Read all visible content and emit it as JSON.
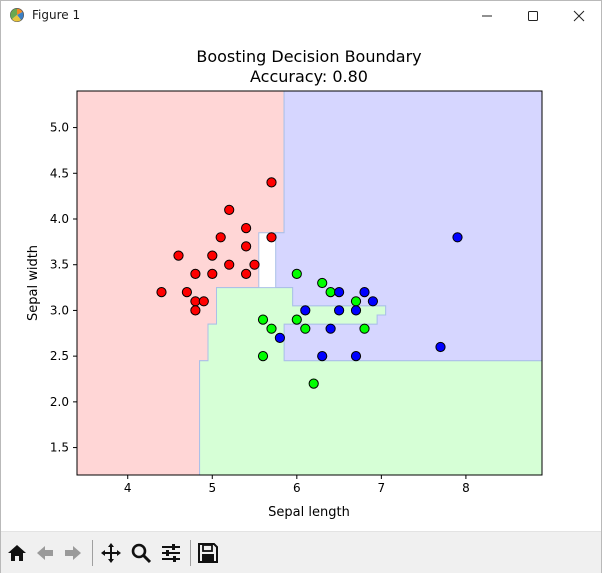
{
  "window": {
    "title": "Figure 1"
  },
  "toolbar": {
    "buttons": [
      "home-icon",
      "back-icon",
      "forward-icon",
      "pan-icon",
      "zoom-icon",
      "configure-icon",
      "save-icon"
    ]
  },
  "colors": {
    "class0_region": "#ffd6d6",
    "class1_region": "#d6ffd6",
    "class2_region": "#d6d6ff",
    "class0_point": "#ff0000",
    "class1_point": "#00ff00",
    "class2_point": "#0000ff",
    "boundary": "#aac0e8"
  },
  "chart_data": {
    "type": "scatter",
    "title": "Boosting Decision Boundary",
    "subtitle": "Accuracy: 0.80",
    "xlabel": "Sepal length",
    "ylabel": "Sepal width",
    "xlim": [
      3.4,
      8.9
    ],
    "ylim": [
      1.2,
      5.4
    ],
    "xticks": [
      4,
      5,
      6,
      7,
      8
    ],
    "yticks": [
      1.5,
      2.0,
      2.5,
      3.0,
      3.5,
      4.0,
      4.5,
      5.0
    ],
    "grid": false,
    "regions": [
      {
        "class": 0,
        "polygon": [
          [
            3.4,
            1.2
          ],
          [
            4.85,
            1.2
          ],
          [
            4.85,
            2.45
          ],
          [
            4.95,
            2.45
          ],
          [
            4.95,
            2.85
          ],
          [
            5.05,
            2.85
          ],
          [
            5.05,
            3.25
          ],
          [
            5.55,
            3.25
          ],
          [
            5.55,
            3.85
          ],
          [
            5.85,
            3.85
          ],
          [
            5.85,
            5.4
          ],
          [
            3.4,
            5.4
          ]
        ]
      },
      {
        "class": 2,
        "polygon": [
          [
            5.85,
            5.4
          ],
          [
            8.9,
            5.4
          ],
          [
            8.9,
            2.45
          ],
          [
            5.85,
            2.45
          ],
          [
            5.85,
            2.85
          ],
          [
            6.95,
            2.85
          ],
          [
            6.95,
            2.95
          ],
          [
            7.05,
            2.95
          ],
          [
            7.05,
            3.05
          ],
          [
            5.95,
            3.05
          ],
          [
            5.95,
            3.25
          ],
          [
            5.75,
            3.25
          ],
          [
            5.75,
            3.85
          ],
          [
            5.85,
            3.85
          ]
        ]
      },
      {
        "class": 1,
        "polygon": [
          [
            4.85,
            1.2
          ],
          [
            8.9,
            1.2
          ],
          [
            8.9,
            2.45
          ],
          [
            5.85,
            2.45
          ],
          [
            5.85,
            2.85
          ],
          [
            6.95,
            2.85
          ],
          [
            6.95,
            2.95
          ],
          [
            7.05,
            2.95
          ],
          [
            7.05,
            3.05
          ],
          [
            5.95,
            3.05
          ],
          [
            5.95,
            3.25
          ],
          [
            5.05,
            3.25
          ],
          [
            5.05,
            2.85
          ],
          [
            4.95,
            2.85
          ],
          [
            4.95,
            2.45
          ],
          [
            4.85,
            2.45
          ]
        ]
      }
    ],
    "series": [
      {
        "class": 0,
        "points": [
          [
            5.7,
            4.4
          ],
          [
            5.2,
            4.1
          ],
          [
            5.4,
            3.9
          ],
          [
            5.7,
            3.8
          ],
          [
            5.1,
            3.8
          ],
          [
            5.4,
            3.7
          ],
          [
            4.6,
            3.6
          ],
          [
            5.0,
            3.6
          ],
          [
            5.2,
            3.5
          ],
          [
            5.5,
            3.5
          ],
          [
            4.8,
            3.4
          ],
          [
            5.0,
            3.4
          ],
          [
            5.4,
            3.4
          ],
          [
            4.4,
            3.2
          ],
          [
            4.7,
            3.2
          ],
          [
            4.8,
            3.1
          ],
          [
            4.9,
            3.1
          ],
          [
            4.8,
            3.0
          ]
        ]
      },
      {
        "class": 1,
        "points": [
          [
            6.0,
            3.4
          ],
          [
            6.3,
            3.3
          ],
          [
            6.4,
            3.2
          ],
          [
            6.7,
            3.1
          ],
          [
            5.6,
            2.9
          ],
          [
            6.0,
            2.9
          ],
          [
            5.7,
            2.8
          ],
          [
            6.1,
            2.8
          ],
          [
            6.8,
            2.8
          ],
          [
            5.6,
            2.5
          ],
          [
            6.2,
            2.2
          ]
        ]
      },
      {
        "class": 2,
        "points": [
          [
            7.9,
            3.8
          ],
          [
            6.5,
            3.2
          ],
          [
            6.8,
            3.2
          ],
          [
            6.9,
            3.1
          ],
          [
            6.1,
            3.0
          ],
          [
            6.5,
            3.0
          ],
          [
            6.7,
            3.0
          ],
          [
            5.8,
            2.7
          ],
          [
            6.4,
            2.8
          ],
          [
            7.7,
            2.6
          ],
          [
            6.3,
            2.5
          ],
          [
            6.7,
            2.5
          ]
        ]
      }
    ]
  }
}
